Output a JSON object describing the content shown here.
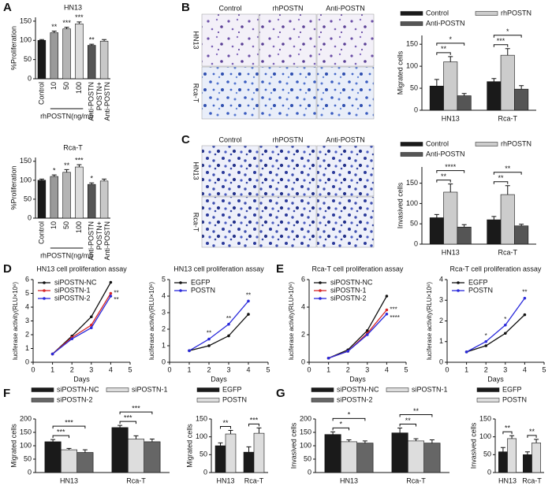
{
  "panel_labels": [
    "A",
    "B",
    "C",
    "D",
    "E",
    "F",
    "G"
  ],
  "images": [
    {
      "columns": [
        "Control",
        "rhPOSTN",
        "Anti-POSTN"
      ],
      "rows": [
        "HN13",
        "Rca-T"
      ]
    },
    {
      "columns": [
        "Control",
        "rhPOSTN",
        "Anti-POSTN"
      ],
      "rows": [
        "HN13",
        "Rca-T"
      ]
    }
  ],
  "chart_data": [
    {
      "type": "bar",
      "title": "HN13",
      "ylabel": "%Proliferation",
      "categories": [
        "Control",
        "10",
        "50",
        "100",
        "Anti-POSTN",
        "POSTN+\nAnti-POSTN"
      ],
      "values": [
        100,
        120,
        130,
        143,
        87,
        98
      ],
      "errors": [
        2,
        4,
        4,
        5,
        3,
        4
      ],
      "colors": [
        "#1a1a1a",
        "#9a9a9a",
        "#b4b4b4",
        "#dcdcdc",
        "#555555",
        "#c8c8c8"
      ],
      "stars": [
        null,
        "**",
        "***",
        "***",
        "**",
        null
      ],
      "group_label": "rhPOSTN(ng/ml)",
      "ylim": [
        0,
        160
      ],
      "yticks": [
        0,
        50,
        100,
        150
      ]
    },
    {
      "type": "bar",
      "title": "Rca-T",
      "ylabel": "%Proliferation",
      "categories": [
        "Control",
        "10",
        "50",
        "100",
        "Anti-POSTN",
        "POSTN+\nAnti-POSTN"
      ],
      "values": [
        100,
        110,
        121,
        135,
        89,
        98
      ],
      "errors": [
        3,
        4,
        7,
        6,
        4,
        5
      ],
      "colors": [
        "#1a1a1a",
        "#9a9a9a",
        "#b4b4b4",
        "#dcdcdc",
        "#555555",
        "#c8c8c8"
      ],
      "stars": [
        null,
        "*",
        "**",
        "***",
        "*",
        null
      ],
      "group_label": "rhPOSTN(ng/ml)",
      "ylim": [
        0,
        160
      ],
      "yticks": [
        0,
        50,
        100,
        150
      ]
    },
    {
      "type": "grouped_bar",
      "ylabel": "Migrated cells",
      "categories": [
        "HN13",
        "Rca-T"
      ],
      "series": [
        {
          "name": "Control",
          "color": "#1a1a1a",
          "values": [
            55,
            65
          ],
          "errors": [
            15,
            7
          ]
        },
        {
          "name": "rhPOSTN",
          "color": "#cccccc",
          "values": [
            110,
            125
          ],
          "errors": [
            12,
            15
          ]
        },
        {
          "name": "Anti-POSTN",
          "color": "#555555",
          "values": [
            33,
            48
          ],
          "errors": [
            5,
            8
          ]
        }
      ],
      "brackets": [
        [
          "**",
          "*"
        ],
        [
          "***",
          "*"
        ]
      ],
      "ylim": [
        0,
        170
      ],
      "yticks": [
        0,
        50,
        100,
        150
      ]
    },
    {
      "type": "grouped_bar",
      "ylabel": "Invasived cells",
      "categories": [
        "HN13",
        "Rca-T"
      ],
      "series": [
        {
          "name": "Control",
          "color": "#1a1a1a",
          "values": [
            65,
            60
          ],
          "errors": [
            8,
            8
          ]
        },
        {
          "name": "rhPOSTN",
          "color": "#cccccc",
          "values": [
            128,
            122
          ],
          "errors": [
            20,
            22
          ]
        },
        {
          "name": "Anti-POSTN",
          "color": "#555555",
          "values": [
            42,
            45
          ],
          "errors": [
            6,
            4
          ]
        }
      ],
      "brackets": [
        [
          "**",
          "****"
        ],
        [
          "**",
          "**"
        ]
      ],
      "ylim": [
        0,
        190
      ],
      "yticks": [
        0,
        50,
        100,
        150
      ]
    },
    {
      "type": "line",
      "title": "HN13 cell proliferation assay",
      "xlabel": "Days",
      "ylabel": "luciferase activity(RLU×10⁶)",
      "x": [
        1,
        2,
        3,
        4
      ],
      "xlim": [
        0,
        5
      ],
      "xticks": [
        0,
        1,
        2,
        3,
        4,
        5
      ],
      "ylim": [
        0,
        6
      ],
      "yticks": [
        0,
        1,
        2,
        3,
        4,
        5,
        6
      ],
      "series": [
        {
          "name": "siPOSTN-NC",
          "color": "#111111",
          "values": [
            0.6,
            1.9,
            3.3,
            5.8
          ]
        },
        {
          "name": "siPOSTN-1",
          "color": "#d62728",
          "values": [
            0.6,
            1.8,
            2.7,
            5.0
          ],
          "end_label": "**"
        },
        {
          "name": "siPOSTN-2",
          "color": "#2a2adb",
          "values": [
            0.6,
            1.7,
            2.5,
            4.8
          ],
          "end_label": "**"
        }
      ]
    },
    {
      "type": "line",
      "title": "HN13 cell proliferation assay",
      "xlabel": "Days",
      "ylabel": "luciferase activity(RLU×10⁶)",
      "x": [
        1,
        2,
        3,
        4
      ],
      "xlim": [
        0,
        5
      ],
      "xticks": [
        0,
        1,
        2,
        3,
        4,
        5
      ],
      "ylim": [
        0,
        5
      ],
      "yticks": [
        0,
        1,
        2,
        3,
        4,
        5
      ],
      "series": [
        {
          "name": "EGFP",
          "color": "#111111",
          "values": [
            0.7,
            1.0,
            1.6,
            2.9
          ]
        },
        {
          "name": "POSTN",
          "color": "#2a2adb",
          "values": [
            0.7,
            1.4,
            2.3,
            3.7
          ]
        }
      ],
      "point_labels": [
        null,
        "**",
        "**",
        "**"
      ]
    },
    {
      "type": "line",
      "title": "Rca-T cell proliferation assay",
      "xlabel": "Days",
      "ylabel": "luciferase activity(RLU×10⁶)",
      "x": [
        1,
        2,
        3,
        4
      ],
      "xlim": [
        0,
        5
      ],
      "xticks": [
        0,
        1,
        2,
        3,
        4,
        5
      ],
      "ylim": [
        0,
        6
      ],
      "yticks": [
        0,
        2,
        4,
        6
      ],
      "series": [
        {
          "name": "siPOSTN-NC",
          "color": "#111111",
          "values": [
            0.3,
            0.9,
            2.3,
            4.8
          ]
        },
        {
          "name": "siPOSTN-1",
          "color": "#d62728",
          "values": [
            0.3,
            0.8,
            2.1,
            3.8
          ],
          "end_label": "***"
        },
        {
          "name": "siPOSTN-2",
          "color": "#2a2adb",
          "values": [
            0.3,
            0.8,
            2.0,
            3.5
          ],
          "end_label": "****"
        }
      ]
    },
    {
      "type": "line",
      "title": "Rca-T cell proliferation assay",
      "xlabel": "Days",
      "ylabel": "luciferase activity(RLU×10⁶)",
      "x": [
        1,
        2,
        3,
        4
      ],
      "xlim": [
        0,
        5
      ],
      "xticks": [
        0,
        1,
        2,
        3,
        4,
        5
      ],
      "ylim": [
        0,
        4
      ],
      "yticks": [
        0,
        1,
        2,
        3,
        4
      ],
      "series": [
        {
          "name": "EGFP",
          "color": "#111111",
          "values": [
            0.5,
            0.8,
            1.4,
            2.3
          ]
        },
        {
          "name": "POSTN",
          "color": "#2a2adb",
          "values": [
            0.5,
            1.0,
            1.8,
            3.1
          ]
        }
      ],
      "point_labels": [
        null,
        "*",
        "*",
        "**"
      ]
    },
    {
      "type": "grouped_bar",
      "ylabel": "Migrated cells",
      "categories": [
        "HN13",
        "Rca-T"
      ],
      "series": [
        {
          "name": "siPOSTN-NC",
          "color": "#1a1a1a",
          "values": [
            115,
            168
          ],
          "errors": [
            8,
            8
          ]
        },
        {
          "name": "siPOSTN-1",
          "color": "#dddddd",
          "values": [
            85,
            125
          ],
          "errors": [
            5,
            12
          ]
        },
        {
          "name": "siPOSTN-2",
          "color": "#666666",
          "values": [
            75,
            115
          ],
          "errors": [
            10,
            10
          ]
        }
      ],
      "brackets": [
        [
          "***",
          "***"
        ],
        [
          "***",
          "***"
        ]
      ],
      "ylim": [
        0,
        200
      ],
      "yticks": [
        0,
        50,
        100,
        150,
        200
      ]
    },
    {
      "type": "grouped_bar",
      "ylabel": "Migrated cells",
      "categories": [
        "HN13",
        "Rca-T"
      ],
      "series": [
        {
          "name": "EGFP",
          "color": "#1a1a1a",
          "values": [
            75,
            57
          ],
          "errors": [
            8,
            15
          ]
        },
        {
          "name": "POSTN",
          "color": "#dddddd",
          "values": [
            108,
            110
          ],
          "errors": [
            10,
            15
          ]
        }
      ],
      "brackets": [
        [
          "**"
        ],
        [
          "***"
        ]
      ],
      "ylim": [
        0,
        150
      ],
      "yticks": [
        0,
        50,
        100,
        150
      ]
    },
    {
      "type": "grouped_bar",
      "ylabel": "Invasived cells",
      "categories": [
        "HN13",
        "Rca-T"
      ],
      "series": [
        {
          "name": "siPOSTN-NC",
          "color": "#1a1a1a",
          "values": [
            142,
            148
          ],
          "errors": [
            10,
            18
          ]
        },
        {
          "name": "siPOSTN-1",
          "color": "#dddddd",
          "values": [
            115,
            118
          ],
          "errors": [
            7,
            8
          ]
        },
        {
          "name": "siPOSTN-2",
          "color": "#666666",
          "values": [
            110,
            110
          ],
          "errors": [
            8,
            12
          ]
        }
      ],
      "brackets": [
        [
          "*",
          "*"
        ],
        [
          "**",
          "**"
        ]
      ],
      "ylim": [
        0,
        200
      ],
      "yticks": [
        0,
        50,
        100,
        150,
        200
      ]
    },
    {
      "type": "grouped_bar",
      "ylabel": "Invasived cells",
      "categories": [
        "HN13",
        "Rca-T"
      ],
      "series": [
        {
          "name": "EGFP",
          "color": "#1a1a1a",
          "values": [
            58,
            50
          ],
          "errors": [
            12,
            8
          ]
        },
        {
          "name": "POSTN",
          "color": "#dddddd",
          "values": [
            95,
            83
          ],
          "errors": [
            8,
            10
          ]
        }
      ],
      "brackets": [
        [
          "**"
        ],
        [
          "**"
        ]
      ],
      "ylim": [
        0,
        150
      ],
      "yticks": [
        0,
        50,
        100,
        150
      ]
    }
  ]
}
